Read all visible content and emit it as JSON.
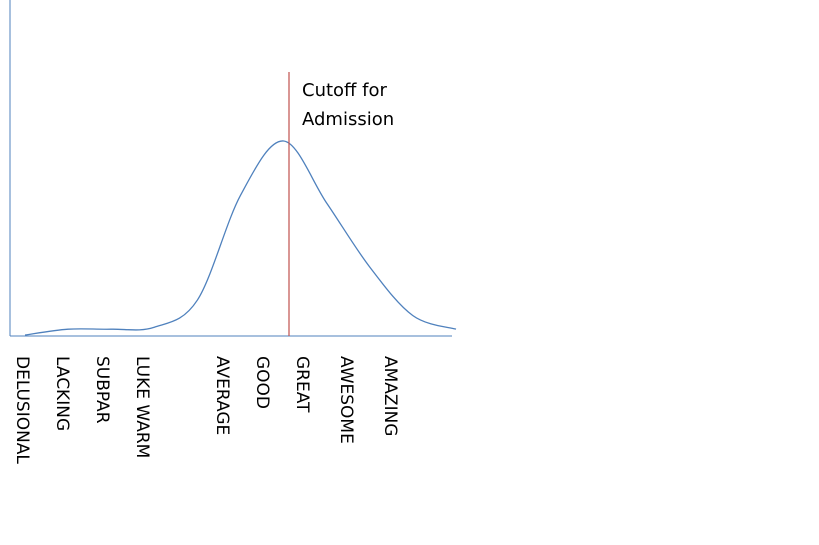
{
  "chart_data": {
    "type": "area",
    "title": "",
    "xlabel": "",
    "ylabel": "",
    "categories": [
      "DELUSIONAL",
      "LACKING",
      "SUBPAR",
      "LUKE WARM",
      "AVERAGE",
      "GOOD",
      "GREAT",
      "AWESOME",
      "AMAZING"
    ],
    "x": [
      0,
      1,
      2,
      3,
      4,
      5,
      6,
      7,
      8,
      9,
      10
    ],
    "values": [
      0,
      3,
      3,
      4,
      18,
      72,
      100,
      68,
      35,
      10,
      3
    ],
    "ylim": [
      0,
      100
    ],
    "grid": false,
    "legend": "none",
    "cutoff": {
      "label_line1": "Cutoff for",
      "label_line2": "Admission",
      "color": "#c0504d"
    },
    "colors": {
      "curve": "#4f81bd",
      "axis": "#4f81bd",
      "text": "#000000"
    }
  }
}
